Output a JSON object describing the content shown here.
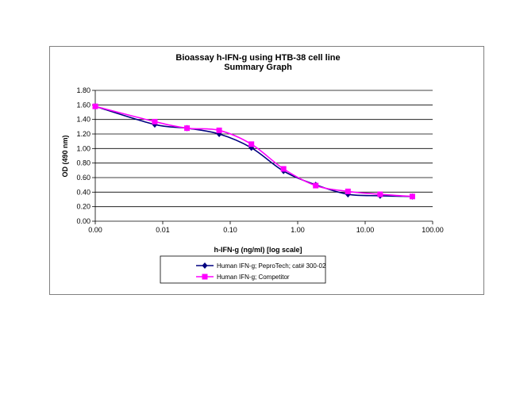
{
  "chart_data": {
    "type": "line",
    "title": "Bioassay h-IFN-g using HTB-38 cell line",
    "subtitle": "Summary Graph",
    "xlabel": "h-IFN-g (ng/ml) [log scale]",
    "ylabel": "OD (490 nm)",
    "xscale": "log",
    "xlim": [
      0.001,
      100
    ],
    "ylim": [
      0,
      1.8
    ],
    "xticks": [
      0.001,
      0.01,
      0.1,
      1,
      10,
      100
    ],
    "xtick_labels": [
      "0.00",
      "0.01",
      "0.10",
      "1.00",
      "10.00",
      "100.00"
    ],
    "yticks": [
      0,
      0.2,
      0.4,
      0.6,
      0.8,
      1.0,
      1.2,
      1.4,
      1.6,
      1.8
    ],
    "ytick_labels": [
      "0.00",
      "0.20",
      "0.40",
      "0.60",
      "0.80",
      "1.00",
      "1.20",
      "1.40",
      "1.60",
      "1.80"
    ],
    "grid": "horizontal",
    "legend_position": "bottom",
    "x": [
      0.001,
      0.00762,
      0.0229,
      0.0686,
      0.206,
      0.617,
      1.85,
      5.56,
      16.67,
      50
    ],
    "series": [
      {
        "name": "Human IFN-g; PeproTech; cat# 300-02",
        "color": "#000080",
        "marker": "diamond",
        "values": [
          1.58,
          1.33,
          1.28,
          1.2,
          1.01,
          0.69,
          0.5,
          0.37,
          0.35,
          0.34
        ]
      },
      {
        "name": "Human IFN-g; Competitor",
        "color": "#FF00FF",
        "marker": "square",
        "values": [
          1.58,
          1.37,
          1.28,
          1.25,
          1.06,
          0.72,
          0.49,
          0.41,
          0.37,
          0.34
        ]
      }
    ]
  }
}
